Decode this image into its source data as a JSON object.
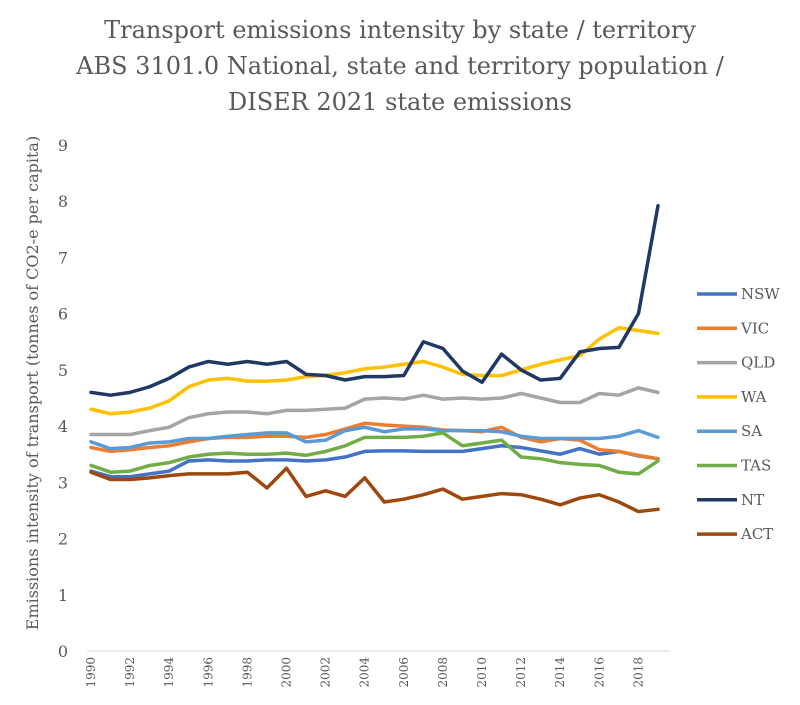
{
  "chart_data": {
    "type": "line",
    "title": [
      "Transport emissions intensity by state / territory",
      "ABS 3101.0 National, state and territory population /",
      "DISER 2021 state emissions"
    ],
    "xlabel": "",
    "ylabel": "Emissions intensity of transport (tonnes of CO2-e per capita)",
    "ylim": [
      0,
      9
    ],
    "yticks": [
      "0",
      "1",
      "2",
      "3",
      "4",
      "5",
      "6",
      "7",
      "8",
      "9"
    ],
    "xticks": [
      "1990",
      "1992",
      "1994",
      "1996",
      "1998",
      "2000",
      "2002",
      "2004",
      "2006",
      "2008",
      "2010",
      "2012",
      "2014",
      "2016",
      "2018"
    ],
    "x": [
      1990,
      1991,
      1992,
      1993,
      1994,
      1995,
      1996,
      1997,
      1998,
      1999,
      2000,
      2001,
      2002,
      2003,
      2004,
      2005,
      2006,
      2007,
      2008,
      2009,
      2010,
      2011,
      2012,
      2013,
      2014,
      2015,
      2016,
      2017,
      2018,
      2019
    ],
    "legend_position": "right",
    "grid": false,
    "series": [
      {
        "name": "NSW",
        "color": "#4472C4",
        "values": [
          3.2,
          3.1,
          3.1,
          3.15,
          3.2,
          3.38,
          3.4,
          3.38,
          3.38,
          3.4,
          3.4,
          3.38,
          3.4,
          3.45,
          3.55,
          3.56,
          3.56,
          3.55,
          3.55,
          3.55,
          3.6,
          3.65,
          3.62,
          3.56,
          3.5,
          3.6,
          3.5,
          3.55,
          3.47,
          3.42
        ]
      },
      {
        "name": "VIC",
        "color": "#ED7D31",
        "values": [
          3.62,
          3.55,
          3.58,
          3.62,
          3.65,
          3.72,
          3.78,
          3.8,
          3.8,
          3.82,
          3.82,
          3.8,
          3.85,
          3.95,
          4.05,
          4.02,
          4.0,
          3.98,
          3.93,
          3.92,
          3.9,
          3.98,
          3.8,
          3.72,
          3.78,
          3.75,
          3.58,
          3.55,
          3.48,
          3.42
        ]
      },
      {
        "name": "QLD",
        "color": "#A5A5A5",
        "values": [
          3.85,
          3.85,
          3.85,
          3.92,
          3.98,
          4.15,
          4.22,
          4.25,
          4.25,
          4.22,
          4.28,
          4.28,
          4.3,
          4.32,
          4.48,
          4.5,
          4.48,
          4.55,
          4.48,
          4.5,
          4.48,
          4.5,
          4.58,
          4.5,
          4.42,
          4.42,
          4.58,
          4.55,
          4.68,
          4.6
        ]
      },
      {
        "name": "WA",
        "color": "#FFC000",
        "values": [
          4.3,
          4.22,
          4.25,
          4.32,
          4.45,
          4.7,
          4.82,
          4.85,
          4.8,
          4.8,
          4.82,
          4.88,
          4.9,
          4.95,
          5.02,
          5.05,
          5.1,
          5.15,
          5.05,
          4.92,
          4.9,
          4.9,
          5.0,
          5.1,
          5.18,
          5.25,
          5.55,
          5.75,
          5.7,
          5.65
        ]
      },
      {
        "name": "SA",
        "color": "#5B9BD5",
        "values": [
          3.72,
          3.6,
          3.62,
          3.7,
          3.72,
          3.78,
          3.78,
          3.82,
          3.85,
          3.88,
          3.88,
          3.72,
          3.75,
          3.92,
          3.98,
          3.9,
          3.95,
          3.95,
          3.92,
          3.92,
          3.92,
          3.9,
          3.82,
          3.78,
          3.78,
          3.78,
          3.78,
          3.82,
          3.92,
          3.8
        ]
      },
      {
        "name": "TAS",
        "color": "#70AD47",
        "values": [
          3.3,
          3.18,
          3.2,
          3.3,
          3.35,
          3.45,
          3.5,
          3.52,
          3.5,
          3.5,
          3.52,
          3.48,
          3.55,
          3.65,
          3.8,
          3.8,
          3.8,
          3.82,
          3.88,
          3.65,
          3.7,
          3.75,
          3.45,
          3.42,
          3.35,
          3.32,
          3.3,
          3.18,
          3.15,
          3.38
        ]
      },
      {
        "name": "NT",
        "color": "#203864",
        "values": [
          4.6,
          4.55,
          4.6,
          4.7,
          4.85,
          5.05,
          5.15,
          5.1,
          5.15,
          5.1,
          5.15,
          4.92,
          4.9,
          4.82,
          4.88,
          4.88,
          4.9,
          5.5,
          5.38,
          4.98,
          4.78,
          5.28,
          5.0,
          4.82,
          4.85,
          5.32,
          5.38,
          5.4,
          6.0,
          7.92
        ]
      },
      {
        "name": "ACT",
        "color": "#9E480E",
        "values": [
          3.18,
          3.05,
          3.05,
          3.08,
          3.12,
          3.15,
          3.15,
          3.15,
          3.18,
          2.9,
          3.25,
          2.75,
          2.85,
          2.75,
          3.08,
          2.65,
          2.7,
          2.78,
          2.88,
          2.7,
          2.75,
          2.8,
          2.78,
          2.7,
          2.6,
          2.72,
          2.78,
          2.65,
          2.48,
          2.52
        ]
      }
    ]
  }
}
